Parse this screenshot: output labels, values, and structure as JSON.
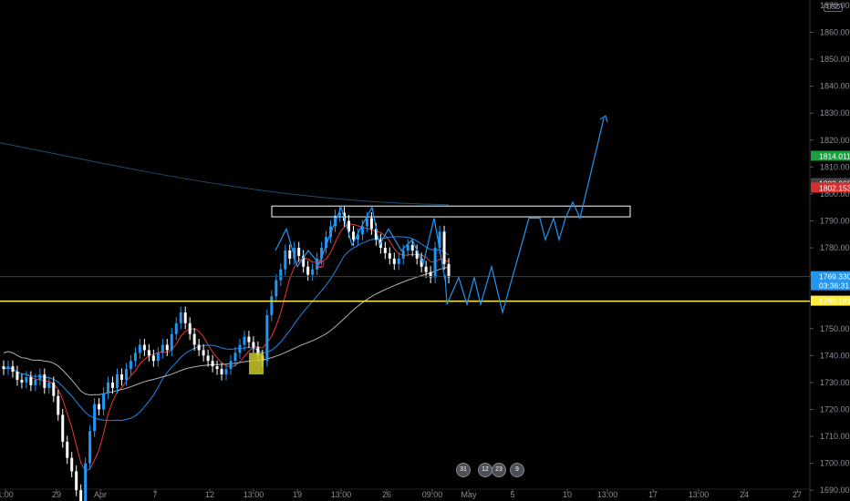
{
  "currency": "USD",
  "colors": {
    "background": "#000000",
    "bull_candle": "#2196f3",
    "bear_candle": "#ffffff",
    "ma_fast": "#e53935",
    "ma_mid": "#1e88e5",
    "ma_slow": "#b0b0b0",
    "ma_long": "#1a4f6e",
    "horizontal_line": "#ffeb3b",
    "projection": "#2196f3",
    "box": "#ffffff",
    "highlight": "#c9c82a"
  },
  "chart_data": {
    "type": "candlestick",
    "y_axis": {
      "min": 1686,
      "max": 1872,
      "ticks": [
        1860,
        1850,
        1840,
        1830,
        1820,
        1810,
        1800,
        1790,
        1780,
        1770,
        1760,
        1750,
        1740,
        1730,
        1720,
        1710,
        1700,
        1690
      ],
      "tick_labels": [
        "1860.000",
        "1850.000",
        "1840.000",
        "1830.000",
        "1820.000",
        "1810.000",
        "1800.000",
        "1790.000",
        "1780.000",
        "1770.000",
        "1760.000",
        "1750.000",
        "1740.000",
        "1730.000",
        "1720.000",
        "1710.000",
        "1700.000",
        "1690.000"
      ],
      "top_label": "1870.000"
    },
    "x_axis": {
      "tick_labels": [
        "1:00",
        "29",
        "Apr",
        "7",
        "12",
        "13:00",
        "19",
        "13:00",
        "26",
        "09:00",
        "May",
        "5",
        "10",
        "13:00",
        "17",
        "13:00",
        "24",
        "27"
      ]
    },
    "price_tags": [
      {
        "label": "1814.011",
        "value": 1814.0,
        "color": "#1b9e3e"
      },
      {
        "label": "1803.868",
        "value": 1803.9,
        "color": "#444444"
      },
      {
        "label": "1802.153",
        "value": 1802.2,
        "color": "#d32f2f"
      },
      {
        "label": "1769.330",
        "value": 1769.3,
        "color": "#2196f3",
        "sub": "03:36:31"
      },
      {
        "label": "1760.181",
        "value": 1760.2,
        "color": "#ffeb3b",
        "dark_text": true
      }
    ],
    "current_price": 1769.33,
    "support_level": 1760.181,
    "resistance_zone": [
      1791.5,
      1795.5
    ],
    "candles_close": [
      1735,
      1736,
      1734,
      1731,
      1730,
      1732,
      1729,
      1731,
      1733,
      1728,
      1730,
      1725,
      1718,
      1708,
      1702,
      1697,
      1690,
      1686,
      1700,
      1712,
      1722,
      1720,
      1726,
      1730,
      1728,
      1733,
      1731,
      1735,
      1738,
      1741,
      1744,
      1742,
      1740,
      1738,
      1741,
      1744,
      1742,
      1748,
      1752,
      1756,
      1752,
      1748,
      1744,
      1742,
      1740,
      1738,
      1736,
      1735,
      1733,
      1735,
      1738,
      1741,
      1744,
      1747,
      1745,
      1743,
      1740,
      1738,
      1755,
      1762,
      1768,
      1772,
      1779,
      1776,
      1780,
      1777,
      1773,
      1770,
      1772,
      1776,
      1780,
      1784,
      1788,
      1792,
      1793,
      1790,
      1786,
      1783,
      1785,
      1788,
      1791,
      1787,
      1783,
      1780,
      1778,
      1776,
      1774,
      1776,
      1779,
      1781,
      1779,
      1776,
      1773,
      1771,
      1769,
      1780,
      1786,
      1774,
      1769
    ],
    "events": [
      "31",
      "12",
      "23",
      "9"
    ],
    "markers": [
      "D"
    ]
  }
}
